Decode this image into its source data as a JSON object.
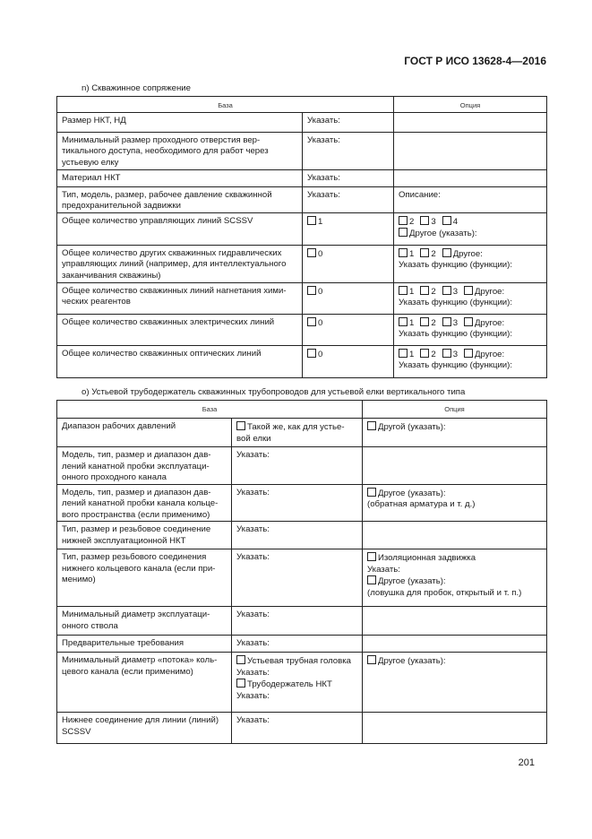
{
  "header": {
    "standard": "ГОСТ Р ИСО 13628-4—2016"
  },
  "page_number": "201",
  "tables": [
    {
      "caption": "n) Скважинное сопряжение",
      "head": {
        "base": "База",
        "option": "Опция"
      },
      "rows": [
        {
          "c": [
            [
              [
                {
                  "t": "Размер НКТ, НД"
                }
              ]
            ],
            [
              [
                {
                  "t": "Указать:"
                }
              ]
            ],
            []
          ]
        },
        {
          "c": [
            [
              [
                {
                  "t": "Минимальный размер проходного отверстия вер-"
                }
              ],
              [
                {
                  "t": "тикального доступа, необходимого для работ через"
                }
              ],
              [
                {
                  "t": "устьевую елку"
                }
              ]
            ],
            [
              [
                {
                  "t": "Указать:"
                }
              ]
            ],
            []
          ]
        },
        {
          "c": [
            [
              [
                {
                  "t": "Материал НКТ"
                }
              ]
            ],
            [
              [
                {
                  "t": "Указать:"
                }
              ]
            ],
            []
          ]
        },
        {
          "c": [
            [
              [
                {
                  "t": "Тип, модель, размер, рабочее давление скважинной"
                }
              ],
              [
                {
                  "t": "предохранительной задвижки"
                }
              ]
            ],
            [
              [
                {
                  "t": "Указать:"
                }
              ]
            ],
            [
              [
                {
                  "t": "Описание:"
                }
              ]
            ]
          ]
        },
        {
          "c": [
            [
              [
                {
                  "t": "Общее количество управляющих линий SCSSV"
                }
              ]
            ],
            [
              [
                {
                  "b": true,
                  "t": "1"
                }
              ]
            ],
            [
              [
                {
                  "b": true,
                  "t": "2"
                },
                {
                  "b": true,
                  "t": "3"
                },
                {
                  "b": true,
                  "t": "4"
                }
              ],
              [
                {
                  "b": true,
                  "t": "Другое (указать):"
                }
              ]
            ]
          ]
        },
        {
          "c": [
            [
              [
                {
                  "t": "Общее количество других скважинных гидравлических"
                }
              ],
              [
                {
                  "t": "управляющих линий (например, для интеллектуального"
                }
              ],
              [
                {
                  "t": "заканчивания скважины)"
                }
              ]
            ],
            [
              [
                {
                  "b": true,
                  "t": "0"
                }
              ]
            ],
            [
              [
                {
                  "b": true,
                  "t": "1"
                },
                {
                  "b": true,
                  "t": "2"
                },
                {
                  "b": true,
                  "t": "Другое:"
                }
              ],
              [
                {
                  "t": "Указать функцию (функции):"
                }
              ]
            ]
          ]
        },
        {
          "c": [
            [
              [
                {
                  "t": "Общее количество скважинных линий нагнетания хими-"
                }
              ],
              [
                {
                  "t": "ческих реагентов"
                }
              ]
            ],
            [
              [
                {
                  "b": true,
                  "t": "0"
                }
              ]
            ],
            [
              [
                {
                  "b": true,
                  "t": "1"
                },
                {
                  "b": true,
                  "t": "2"
                },
                {
                  "b": true,
                  "t": "3"
                },
                {
                  "b": true,
                  "t": "Другое:"
                }
              ],
              [
                {
                  "t": "Указать функцию (функции):"
                }
              ]
            ]
          ]
        },
        {
          "c": [
            [
              [
                {
                  "t": "Общее количество скважинных электрических линий"
                }
              ]
            ],
            [
              [
                {
                  "b": true,
                  "t": "0"
                }
              ]
            ],
            [
              [
                {
                  "b": true,
                  "t": "1"
                },
                {
                  "b": true,
                  "t": "2"
                },
                {
                  "b": true,
                  "t": "3"
                },
                {
                  "b": true,
                  "t": "Другое:"
                }
              ],
              [
                {
                  "t": "Указать функцию (функции):"
                }
              ]
            ]
          ]
        },
        {
          "c": [
            [
              [
                {
                  "t": "Общее количество скважинных оптических линий"
                }
              ]
            ],
            [
              [
                {
                  "b": true,
                  "t": "0"
                }
              ]
            ],
            [
              [
                {
                  "b": true,
                  "t": "1"
                },
                {
                  "b": true,
                  "t": "2"
                },
                {
                  "b": true,
                  "t": "3"
                },
                {
                  "b": true,
                  "t": "Другое:"
                }
              ],
              [
                {
                  "t": "Указать функцию (функции):"
                }
              ]
            ]
          ]
        }
      ]
    },
    {
      "caption": "o) Устьевой трубодержатель скважинных трубопроводов для устьевой елки вертикального типа",
      "head": {
        "base": "База",
        "option": "Опция"
      },
      "rows": [
        {
          "c": [
            [
              [
                {
                  "t": "Диапазон рабочих давлений"
                }
              ]
            ],
            [
              [
                {
                  "b": true,
                  "t": "Такой же, как для устье-"
                }
              ],
              [
                {
                  "t": "вой елки"
                }
              ]
            ],
            [
              [
                {
                  "b": true,
                  "t": "Другой (указать):"
                }
              ]
            ]
          ]
        },
        {
          "c": [
            [
              [
                {
                  "t": "Модель, тип, размер и диапазон дав-"
                }
              ],
              [
                {
                  "t": "лений канатной пробки эксплуатаци-"
                }
              ],
              [
                {
                  "t": "онного проходного канала"
                }
              ]
            ],
            [
              [
                {
                  "t": "Указать:"
                }
              ]
            ],
            []
          ]
        },
        {
          "c": [
            [
              [
                {
                  "t": "Модель, тип, размер и диапазон дав-"
                }
              ],
              [
                {
                  "t": "лений канатной пробки канала кольце-"
                }
              ],
              [
                {
                  "t": "вого пространства (если применимо)"
                }
              ]
            ],
            [
              [
                {
                  "t": "Указать:"
                }
              ]
            ],
            [
              [
                {
                  "b": true,
                  "t": "Другое (указать):"
                }
              ],
              [
                {
                  "t": "(обратная арматура и т. д.)"
                }
              ]
            ]
          ]
        },
        {
          "c": [
            [
              [
                {
                  "t": "Тип, размер и резьбовое соединение"
                }
              ],
              [
                {
                  "t": "нижней эксплуатационной НКТ"
                }
              ]
            ],
            [
              [
                {
                  "t": "Указать:"
                }
              ]
            ],
            []
          ]
        },
        {
          "c": [
            [
              [
                {
                  "t": "Тип, размер резьбового соединения"
                }
              ],
              [
                {
                  "t": "нижнего кольцевого канала (если при-"
                }
              ],
              [
                {
                  "t": "менимо)"
                }
              ]
            ],
            [
              [
                {
                  "t": "Указать:"
                }
              ]
            ],
            [
              [
                {
                  "b": true,
                  "t": "Изоляционная задвижка"
                }
              ],
              [
                {
                  "t": "Указать:"
                }
              ],
              [
                {
                  "b": true,
                  "t": "Другое (указать):"
                }
              ],
              [
                {
                  "t": "(ловушка для пробок, открытый и т. п.)"
                }
              ]
            ]
          ]
        },
        {
          "c": [
            [
              [
                {
                  "t": "Минимальный диаметр эксплуатаци-"
                }
              ],
              [
                {
                  "t": "онного ствола"
                }
              ]
            ],
            [
              [
                {
                  "t": "Указать:"
                }
              ]
            ],
            []
          ]
        },
        {
          "c": [
            [
              [
                {
                  "t": "Предварительные требования"
                }
              ]
            ],
            [
              [
                {
                  "t": "Указать:"
                }
              ]
            ],
            []
          ]
        },
        {
          "c": [
            [
              [
                {
                  "t": "Минимальный диаметр «потока» коль-"
                }
              ],
              [
                {
                  "t": "цевого канала (если применимо)"
                }
              ]
            ],
            [
              [
                {
                  "b": true,
                  "t": "Устьевая трубная головка"
                }
              ],
              [
                {
                  "t": "Указать:"
                }
              ],
              [
                {
                  "b": true,
                  "t": "Трубодержатель НКТ"
                }
              ],
              [
                {
                  "t": "Указать:"
                }
              ]
            ],
            [
              [
                {
                  "b": true,
                  "t": "Другое (указать):"
                }
              ]
            ]
          ]
        },
        {
          "c": [
            [
              [
                {
                  "t": "Нижнее соединение для линии (линий)"
                }
              ],
              [
                {
                  "t": "SCSSV"
                }
              ]
            ],
            [
              [
                {
                  "t": "Указать:"
                }
              ]
            ],
            []
          ]
        }
      ]
    }
  ]
}
